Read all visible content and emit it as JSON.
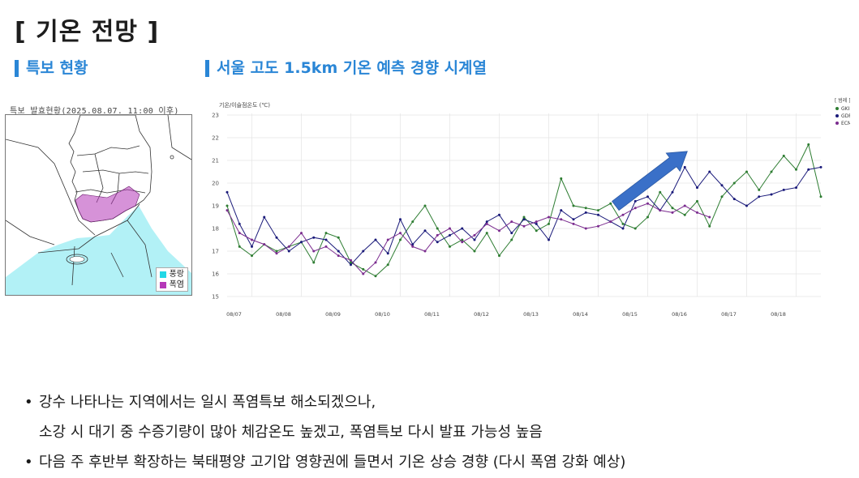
{
  "page": {
    "title": "[ 기온 전망 ]",
    "left_heading": "특보 현황",
    "right_heading": "서울 고도 1.5km 기온 예측 경향 시계열"
  },
  "map": {
    "caption": "특보 발효현황(2025.08.07. 11:00 이후)",
    "legend": [
      {
        "label": "풍랑",
        "color": "#22d8e6"
      },
      {
        "label": "폭염",
        "color": "#b538b8"
      }
    ]
  },
  "bullets": [
    {
      "line1": "강수 나타나는 지역에서는 일시 폭염특보 해소되겠으나,",
      "line2": "소강 시 대기 중 수증기량이 많아 체감온도 높겠고, 폭염특보 다시 발표 가능성 높음"
    },
    {
      "line1": "다음 주 후반부 확장하는 북태평양 고기압 영향권에 들면서 기온 상승 경향 (다시 폭염 강화 예상)"
    }
  ],
  "chart_data": {
    "type": "line",
    "title": "",
    "ylabel": "기온/이슬점온도 (℃)",
    "xlabel": "",
    "ylim": [
      15,
      23
    ],
    "yticks": [
      15,
      16,
      17,
      18,
      19,
      20,
      21,
      22,
      23
    ],
    "xlim": [
      0,
      12
    ],
    "categories": [
      "08/07",
      "08/08",
      "08/09",
      "08/10",
      "08/11",
      "08/12",
      "08/13",
      "08/14",
      "08/15",
      "08/16",
      "08/17",
      "08/18"
    ],
    "legend_title": "[ 범례 ]",
    "legend_position": "top-right",
    "grid": true,
    "series": [
      {
        "name": "GKIM",
        "color": "#2e7d32",
        "points": [
          [
            0,
            19.0
          ],
          [
            0.25,
            17.2
          ],
          [
            0.5,
            16.8
          ],
          [
            0.75,
            17.3
          ],
          [
            1.0,
            17.0
          ],
          [
            1.25,
            17.2
          ],
          [
            1.5,
            17.4
          ],
          [
            1.75,
            16.5
          ],
          [
            2.0,
            17.8
          ],
          [
            2.25,
            17.6
          ],
          [
            2.5,
            16.5
          ],
          [
            2.75,
            16.2
          ],
          [
            3.0,
            15.9
          ],
          [
            3.25,
            16.4
          ],
          [
            3.5,
            17.5
          ],
          [
            3.75,
            18.3
          ],
          [
            4.0,
            19.0
          ],
          [
            4.25,
            18.0
          ],
          [
            4.5,
            17.2
          ],
          [
            4.75,
            17.5
          ],
          [
            5.0,
            17.0
          ],
          [
            5.25,
            17.8
          ],
          [
            5.5,
            16.8
          ],
          [
            5.75,
            17.5
          ],
          [
            6.0,
            18.5
          ],
          [
            6.25,
            17.9
          ],
          [
            6.5,
            18.2
          ],
          [
            6.75,
            20.2
          ],
          [
            7.0,
            19.0
          ],
          [
            7.25,
            18.9
          ],
          [
            7.5,
            18.8
          ],
          [
            7.75,
            19.1
          ],
          [
            8.0,
            18.2
          ],
          [
            8.25,
            18.0
          ],
          [
            8.5,
            18.5
          ],
          [
            8.75,
            19.6
          ],
          [
            9.0,
            18.9
          ],
          [
            9.25,
            18.6
          ],
          [
            9.5,
            19.2
          ],
          [
            9.75,
            18.1
          ],
          [
            10.0,
            19.4
          ],
          [
            10.25,
            20.0
          ],
          [
            10.5,
            20.5
          ],
          [
            10.75,
            19.7
          ],
          [
            11.0,
            20.5
          ],
          [
            11.25,
            21.2
          ],
          [
            11.5,
            20.6
          ],
          [
            11.75,
            21.7
          ],
          [
            12.0,
            19.4
          ]
        ]
      },
      {
        "name": "GDPS",
        "color": "#1a1a7a",
        "points": [
          [
            0,
            19.6
          ],
          [
            0.25,
            18.2
          ],
          [
            0.5,
            17.2
          ],
          [
            0.75,
            18.5
          ],
          [
            1.0,
            17.6
          ],
          [
            1.25,
            17.0
          ],
          [
            1.5,
            17.4
          ],
          [
            1.75,
            17.6
          ],
          [
            2.0,
            17.5
          ],
          [
            2.25,
            17.0
          ],
          [
            2.5,
            16.4
          ],
          [
            2.75,
            17.0
          ],
          [
            3.0,
            17.5
          ],
          [
            3.25,
            16.9
          ],
          [
            3.5,
            18.4
          ],
          [
            3.75,
            17.3
          ],
          [
            4.0,
            17.9
          ],
          [
            4.25,
            17.4
          ],
          [
            4.5,
            17.7
          ],
          [
            4.75,
            18.0
          ],
          [
            5.0,
            17.5
          ],
          [
            5.25,
            18.3
          ],
          [
            5.5,
            18.6
          ],
          [
            5.75,
            17.8
          ],
          [
            6.0,
            18.4
          ],
          [
            6.25,
            18.2
          ],
          [
            6.5,
            17.5
          ],
          [
            6.75,
            18.8
          ],
          [
            7.0,
            18.4
          ],
          [
            7.25,
            18.7
          ],
          [
            7.5,
            18.6
          ],
          [
            7.75,
            18.3
          ],
          [
            8.0,
            18.0
          ],
          [
            8.25,
            19.2
          ],
          [
            8.5,
            19.4
          ],
          [
            8.75,
            18.8
          ],
          [
            9.0,
            19.6
          ],
          [
            9.25,
            20.7
          ],
          [
            9.5,
            19.8
          ],
          [
            9.75,
            20.5
          ],
          [
            10.0,
            19.9
          ],
          [
            10.25,
            19.3
          ],
          [
            10.5,
            19.0
          ],
          [
            10.75,
            19.4
          ],
          [
            11.0,
            19.5
          ],
          [
            11.25,
            19.7
          ],
          [
            11.5,
            19.8
          ],
          [
            11.75,
            20.6
          ],
          [
            12.0,
            20.7
          ]
        ]
      },
      {
        "name": "ECMW",
        "color": "#7b2c8f",
        "points": [
          [
            0,
            18.8
          ],
          [
            0.25,
            17.8
          ],
          [
            0.5,
            17.5
          ],
          [
            0.75,
            17.3
          ],
          [
            1.0,
            16.9
          ],
          [
            1.25,
            17.2
          ],
          [
            1.5,
            17.8
          ],
          [
            1.75,
            17.0
          ],
          [
            2.0,
            17.2
          ],
          [
            2.25,
            16.8
          ],
          [
            2.5,
            16.6
          ],
          [
            2.75,
            16.0
          ],
          [
            3.0,
            16.5
          ],
          [
            3.25,
            17.5
          ],
          [
            3.5,
            17.8
          ],
          [
            3.75,
            17.2
          ],
          [
            4.0,
            17.0
          ],
          [
            4.25,
            17.7
          ],
          [
            4.5,
            18.0
          ],
          [
            4.75,
            17.4
          ],
          [
            5.0,
            17.7
          ],
          [
            5.25,
            18.2
          ],
          [
            5.5,
            17.9
          ],
          [
            5.75,
            18.3
          ],
          [
            6.0,
            18.1
          ],
          [
            6.25,
            18.3
          ],
          [
            6.5,
            18.5
          ],
          [
            6.75,
            18.4
          ],
          [
            7.0,
            18.2
          ],
          [
            7.25,
            18.0
          ],
          [
            7.5,
            18.1
          ],
          [
            7.75,
            18.3
          ],
          [
            8.0,
            18.6
          ],
          [
            8.25,
            18.9
          ],
          [
            8.5,
            19.1
          ],
          [
            8.75,
            18.8
          ],
          [
            9.0,
            18.7
          ],
          [
            9.25,
            19.0
          ],
          [
            9.5,
            18.7
          ],
          [
            9.75,
            18.5
          ]
        ]
      }
    ]
  }
}
